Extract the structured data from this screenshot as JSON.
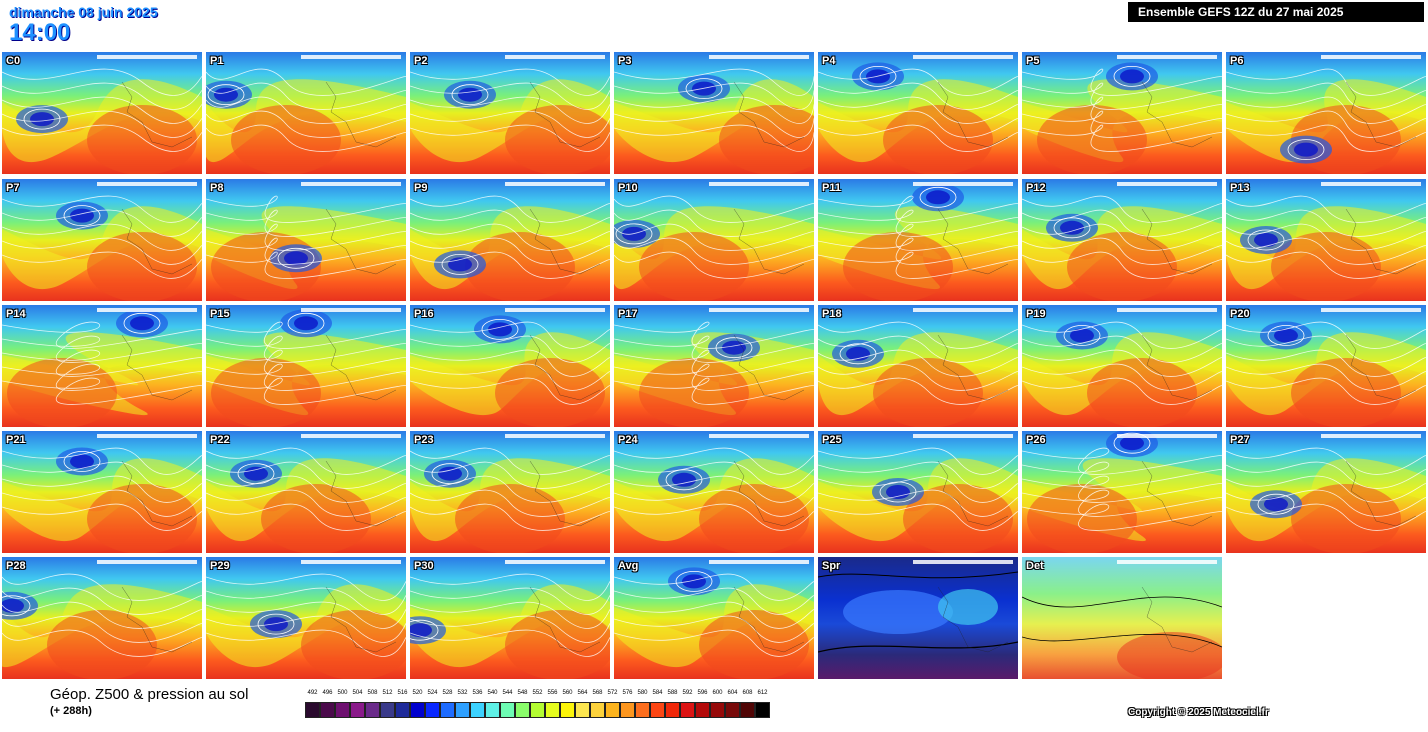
{
  "header": {
    "date": "dimanche 08 juin 2025",
    "time": "14:00",
    "run": "Ensemble GEFS 12Z du 27 mai 2025"
  },
  "panels": [
    {
      "label": "C0",
      "type": "member",
      "trough": 0.25,
      "ridge": 0.7,
      "low": [
        0.2,
        0.55
      ]
    },
    {
      "label": "P1",
      "type": "member",
      "trough": 0.1,
      "ridge": 0.4,
      "low": [
        0.1,
        0.35
      ]
    },
    {
      "label": "P2",
      "type": "member",
      "trough": 0.35,
      "ridge": 0.75,
      "low": [
        0.3,
        0.35
      ]
    },
    {
      "label": "P3",
      "type": "member",
      "trough": 0.4,
      "ridge": 0.8,
      "low": [
        0.45,
        0.3
      ]
    },
    {
      "label": "P4",
      "type": "member",
      "trough": 0.3,
      "ridge": 0.6,
      "low": [
        0.3,
        0.2
      ]
    },
    {
      "label": "P5",
      "type": "member",
      "trough": 0.5,
      "ridge": 0.35,
      "low": [
        0.55,
        0.2
      ]
    },
    {
      "label": "P6",
      "type": "member",
      "trough": 0.4,
      "ridge": 0.6,
      "low": [
        0.4,
        0.8
      ]
    },
    {
      "label": "P7",
      "type": "member",
      "trough": 0.3,
      "ridge": 0.7,
      "low": [
        0.4,
        0.3
      ]
    },
    {
      "label": "P8",
      "type": "member",
      "trough": 0.45,
      "ridge": 0.3,
      "low": [
        0.45,
        0.65
      ]
    },
    {
      "label": "P9",
      "type": "member",
      "trough": 0.25,
      "ridge": 0.55,
      "low": [
        0.25,
        0.7
      ]
    },
    {
      "label": "P10",
      "type": "member",
      "trough": 0.1,
      "ridge": 0.4,
      "low": [
        0.1,
        0.45
      ]
    },
    {
      "label": "P11",
      "type": "member",
      "trough": 0.6,
      "ridge": 0.4,
      "low": [
        0.6,
        0.15
      ]
    },
    {
      "label": "P12",
      "type": "member",
      "trough": 0.25,
      "ridge": 0.5,
      "low": [
        0.25,
        0.4
      ]
    },
    {
      "label": "P13",
      "type": "member",
      "trough": 0.2,
      "ridge": 0.5,
      "low": [
        0.2,
        0.5
      ]
    },
    {
      "label": "P14",
      "type": "member",
      "trough": 0.7,
      "ridge": 0.3,
      "low": [
        0.7,
        0.15
      ]
    },
    {
      "label": "P15",
      "type": "member",
      "trough": 0.5,
      "ridge": 0.3,
      "low": [
        0.5,
        0.15
      ]
    },
    {
      "label": "P16",
      "type": "member",
      "trough": 0.45,
      "ridge": 0.7,
      "low": [
        0.45,
        0.2
      ]
    },
    {
      "label": "P17",
      "type": "member",
      "trough": 0.6,
      "ridge": 0.4,
      "low": [
        0.6,
        0.35
      ]
    },
    {
      "label": "P18",
      "type": "member",
      "trough": 0.2,
      "ridge": 0.55,
      "low": [
        0.2,
        0.4
      ]
    },
    {
      "label": "P19",
      "type": "member",
      "trough": 0.3,
      "ridge": 0.6,
      "low": [
        0.3,
        0.25
      ]
    },
    {
      "label": "P20",
      "type": "member",
      "trough": 0.3,
      "ridge": 0.6,
      "low": [
        0.3,
        0.25
      ]
    },
    {
      "label": "P21",
      "type": "member",
      "trough": 0.4,
      "ridge": 0.7,
      "low": [
        0.4,
        0.25
      ]
    },
    {
      "label": "P22",
      "type": "member",
      "trough": 0.25,
      "ridge": 0.55,
      "low": [
        0.25,
        0.35
      ]
    },
    {
      "label": "P23",
      "type": "member",
      "trough": 0.2,
      "ridge": 0.5,
      "low": [
        0.2,
        0.35
      ]
    },
    {
      "label": "P24",
      "type": "member",
      "trough": 0.35,
      "ridge": 0.7,
      "low": [
        0.35,
        0.4
      ]
    },
    {
      "label": "P25",
      "type": "member",
      "trough": 0.4,
      "ridge": 0.7,
      "low": [
        0.4,
        0.5
      ]
    },
    {
      "label": "P26",
      "type": "member",
      "trough": 0.6,
      "ridge": 0.3,
      "low": [
        0.55,
        0.1
      ]
    },
    {
      "label": "P27",
      "type": "member",
      "trough": 0.25,
      "ridge": 0.6,
      "low": [
        0.25,
        0.6
      ]
    },
    {
      "label": "P28",
      "type": "member",
      "trough": 0.1,
      "ridge": 0.5,
      "low": [
        0.05,
        0.4
      ]
    },
    {
      "label": "P29",
      "type": "member",
      "trough": 0.35,
      "ridge": 0.75,
      "low": [
        0.35,
        0.55
      ]
    },
    {
      "label": "P30",
      "type": "member",
      "trough": 0.35,
      "ridge": 0.75,
      "low": [
        0.05,
        0.6
      ]
    },
    {
      "label": "Avg",
      "type": "average",
      "trough": 0.4,
      "ridge": 0.7,
      "low": [
        0.4,
        0.2
      ]
    },
    {
      "label": "Spr",
      "type": "spread"
    },
    {
      "label": "Det",
      "type": "det"
    }
  ],
  "legend": {
    "title": "Géop. Z500 & pression au sol",
    "subtitle": "(+ 288h)",
    "ticks": [
      "492",
      "496",
      "500",
      "504",
      "508",
      "512",
      "516",
      "520",
      "524",
      "528",
      "532",
      "536",
      "540",
      "544",
      "548",
      "552",
      "556",
      "560",
      "564",
      "568",
      "572",
      "576",
      "580",
      "584",
      "588",
      "592",
      "596",
      "600",
      "604",
      "608",
      "612"
    ],
    "colors": [
      "#2a0a2e",
      "#4b0a4b",
      "#6e1070",
      "#8a1a8a",
      "#6a2a8a",
      "#3a3a8a",
      "#1e2a9a",
      "#0000cd",
      "#0a28ff",
      "#1e6cff",
      "#2ea0ff",
      "#3cd2ff",
      "#5ef0e6",
      "#6efcb4",
      "#8afc6a",
      "#b4fc32",
      "#e6fc1e",
      "#fcf50a",
      "#fce650",
      "#fcd23c",
      "#fcb41e",
      "#fc961e",
      "#fc6e1e",
      "#fc4614",
      "#f0280a",
      "#dc1414",
      "#b40a0a",
      "#960a0a",
      "#780a0a",
      "#500505",
      "#000000"
    ]
  },
  "copyright": "Copyright © 2025 Meteociel.fr"
}
